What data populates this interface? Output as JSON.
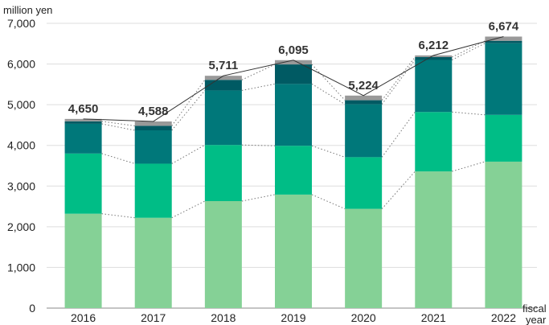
{
  "chart_data": {
    "type": "bar",
    "stacked": true,
    "ylabel": "million yen",
    "xlabel_lines": [
      "fiscal",
      "year"
    ],
    "ylim": [
      0,
      7000
    ],
    "yticks": [
      0,
      1000,
      2000,
      3000,
      4000,
      5000,
      6000,
      7000
    ],
    "ytick_labels": [
      "0",
      "1,000",
      "2,000",
      "3,000",
      "4,000",
      "5,000",
      "6,000",
      "7,000"
    ],
    "grid": true,
    "categories": [
      "2016",
      "2017",
      "2018",
      "2019",
      "2020",
      "2021",
      "2022"
    ],
    "series": [
      {
        "values": [
          2320,
          2220,
          2630,
          2790,
          2440,
          3360,
          3600
        ],
        "color": "#85d196"
      },
      {
        "values": [
          1480,
          1330,
          1380,
          1200,
          1270,
          1460,
          1150
        ],
        "color": "#00bd86"
      },
      {
        "values": [
          730,
          820,
          1340,
          1520,
          1300,
          1280,
          1760
        ],
        "color": "#00787a"
      },
      {
        "values": [
          60,
          110,
          260,
          480,
          100,
          70,
          60
        ],
        "color": "#005a63"
      },
      {
        "values": [
          60,
          108,
          101,
          105,
          114,
          42,
          104
        ],
        "color": "#999999"
      }
    ],
    "totals": [
      4650,
      4588,
      5711,
      6095,
      5224,
      6212,
      6674
    ],
    "total_labels": [
      "4,650",
      "4,588",
      "5,711",
      "6,095",
      "5,224",
      "6,212",
      "6,674"
    ]
  }
}
